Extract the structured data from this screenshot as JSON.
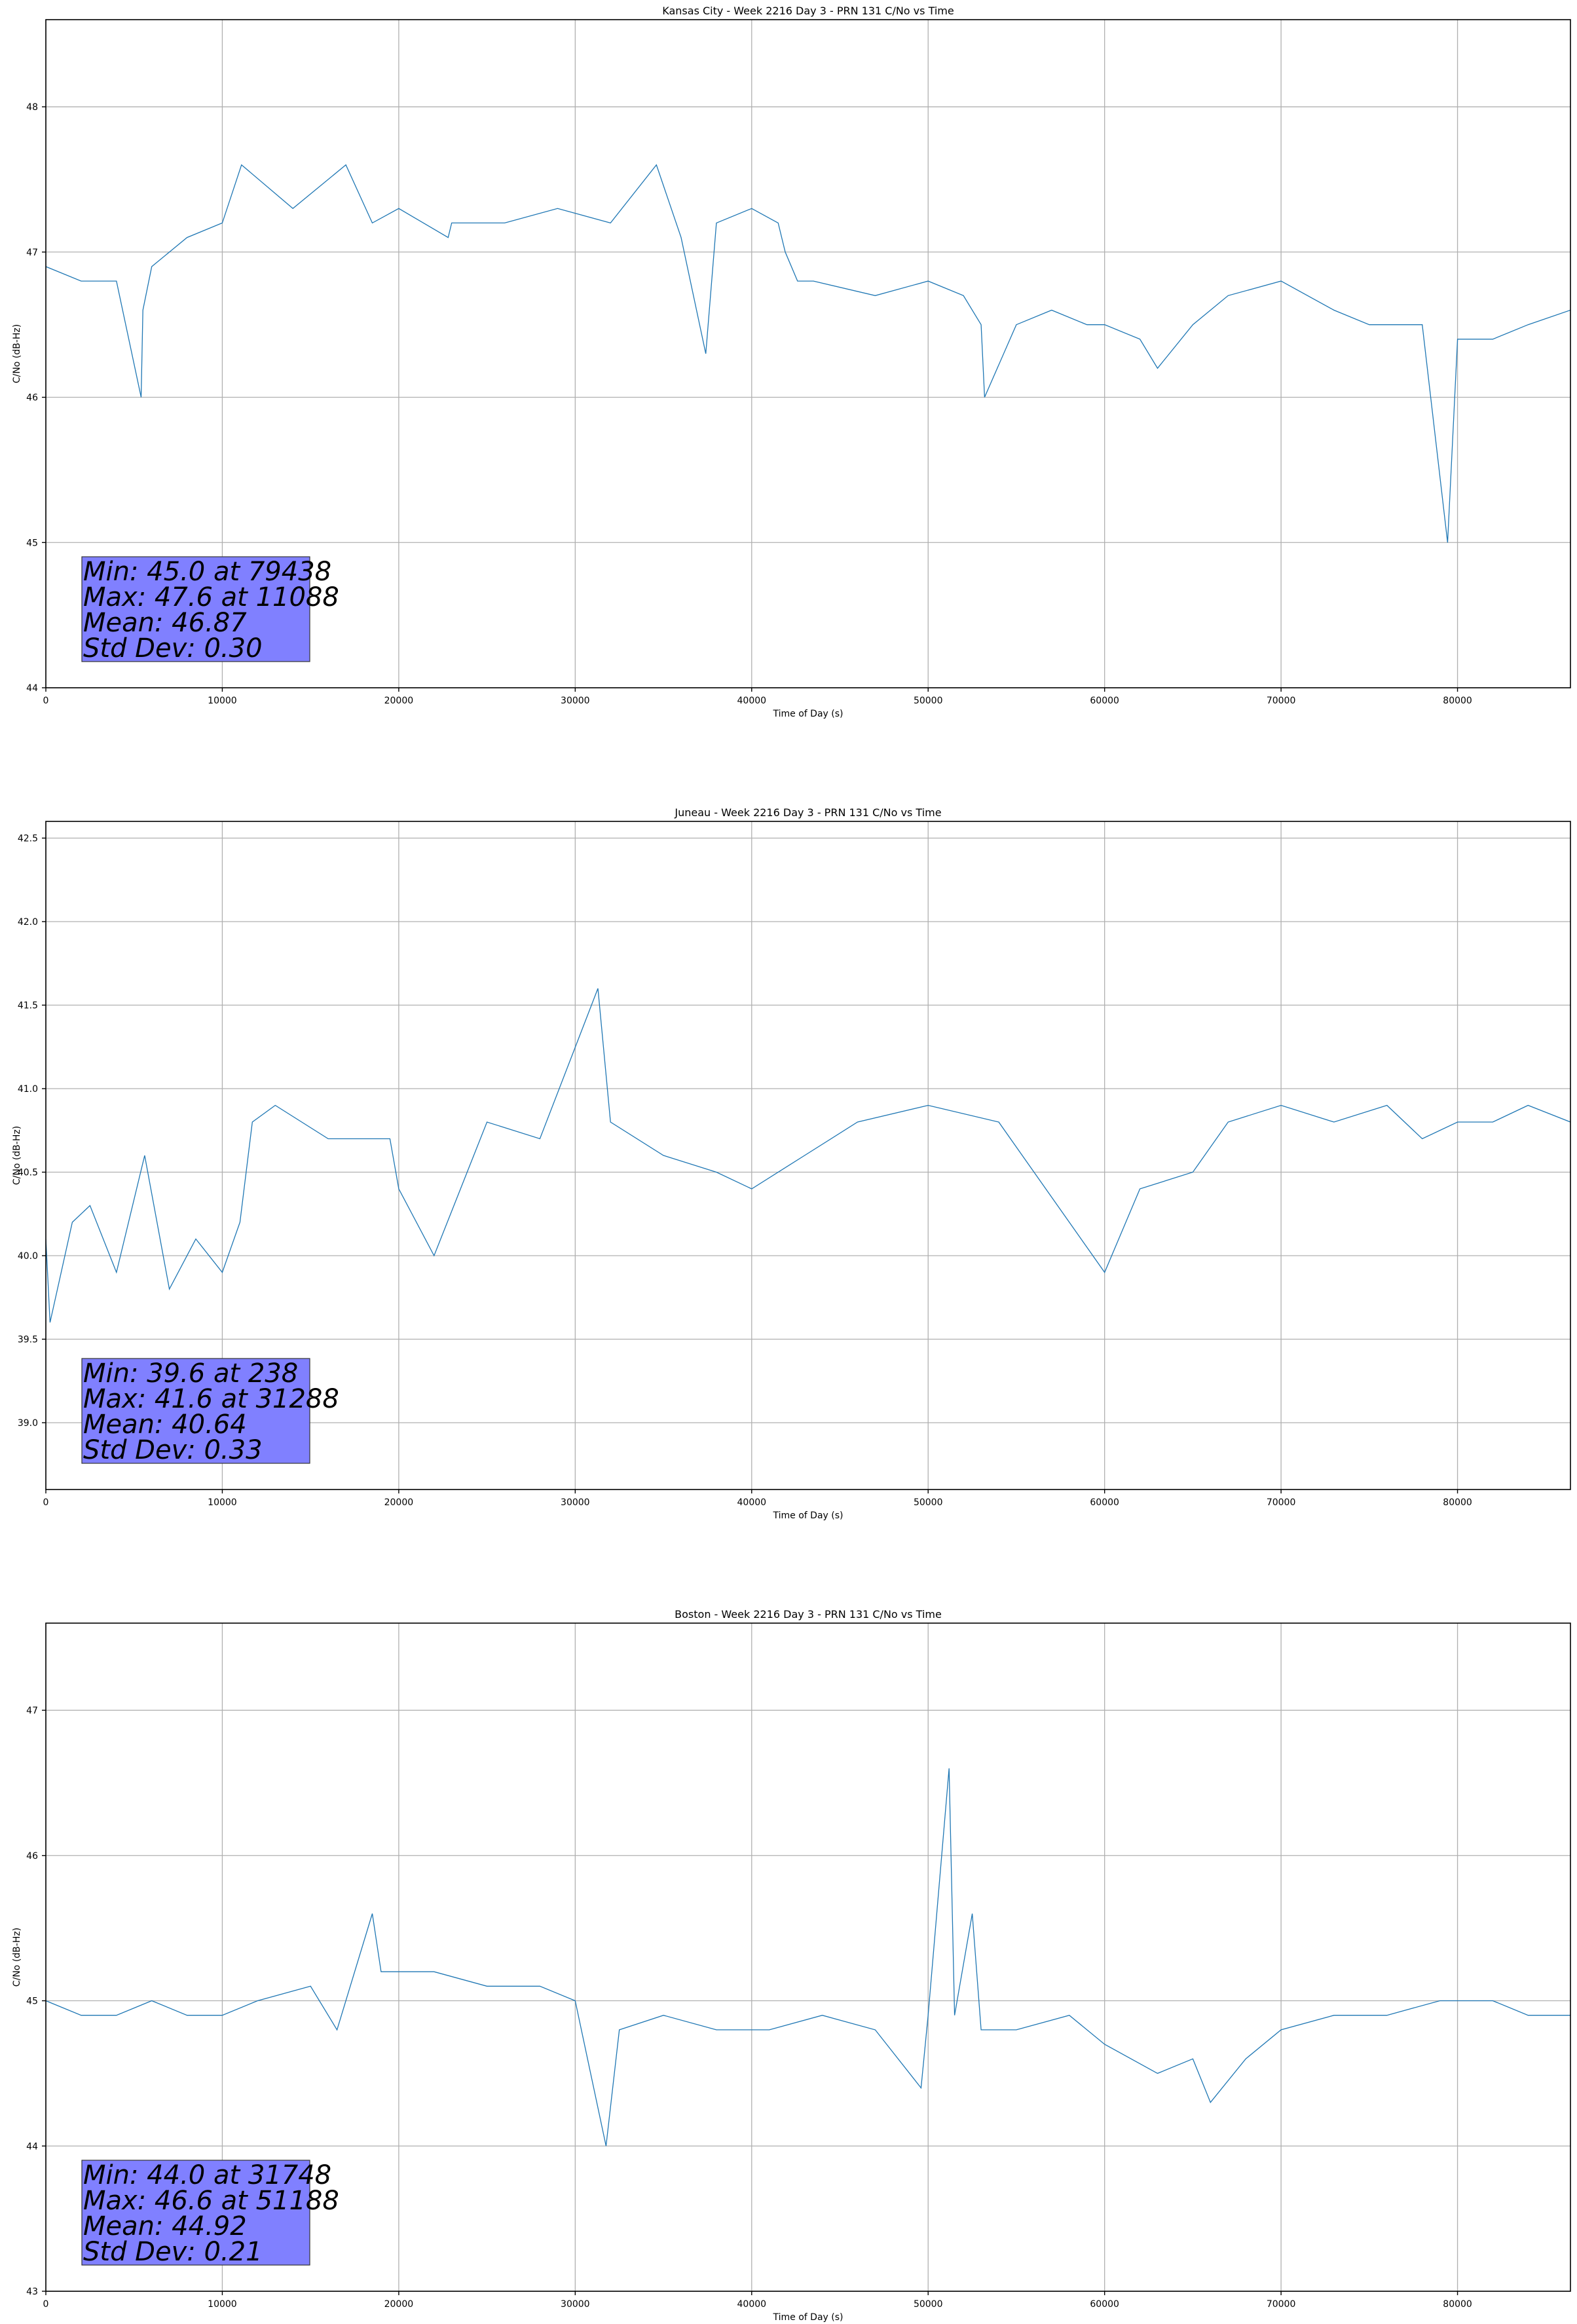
{
  "colors": {
    "series": "#1f77b4",
    "stats_box": "#8080ff",
    "grid": "#b0b0b0"
  },
  "chart_data": [
    {
      "type": "line",
      "title": "Kansas City - Week 2216 Day 3 - PRN 131 C/No vs Time",
      "xlabel": "Time of Day (s)",
      "ylabel": "C/No (dB-Hz)",
      "xlim": [
        0,
        86400
      ],
      "ylim": [
        44,
        48.6
      ],
      "xticks": [
        0,
        10000,
        20000,
        30000,
        40000,
        50000,
        60000,
        70000,
        80000
      ],
      "yticks": [
        44,
        45,
        46,
        47,
        48
      ],
      "grid": true,
      "series": [
        {
          "x": [
            0,
            2000,
            4000,
            5400,
            5500,
            6000,
            8000,
            10000,
            11088,
            14000,
            17000,
            18500,
            20000,
            22800,
            23000,
            26000,
            29000,
            32000,
            34600,
            36000,
            37400,
            38000,
            40000,
            41500,
            41900,
            42600,
            43500,
            47000,
            50000,
            52000,
            53000,
            53200,
            55000,
            57000,
            59000,
            60000,
            62000,
            63000,
            65000,
            67000,
            70000,
            73000,
            75000,
            76000,
            78000,
            79438,
            80000,
            82000,
            84000,
            86400
          ],
          "y": [
            46.9,
            46.8,
            46.8,
            46.0,
            46.6,
            46.9,
            47.1,
            47.2,
            47.6,
            47.3,
            47.6,
            47.2,
            47.3,
            47.1,
            47.2,
            47.2,
            47.3,
            47.2,
            47.6,
            47.1,
            46.3,
            47.2,
            47.3,
            47.2,
            47.0,
            46.8,
            46.8,
            46.7,
            46.8,
            46.7,
            46.5,
            46.0,
            46.5,
            46.6,
            46.5,
            46.5,
            46.4,
            46.2,
            46.5,
            46.7,
            46.8,
            46.6,
            46.5,
            46.5,
            46.5,
            45.0,
            46.4,
            46.4,
            46.5,
            46.6
          ]
        }
      ],
      "stats_box": [
        "Min: 45.0 at 79438",
        "Max: 47.6 at 11088",
        "Mean: 46.87",
        "Std Dev: 0.30"
      ]
    },
    {
      "type": "line",
      "title": "Juneau - Week 2216 Day 3 - PRN 131 C/No vs Time",
      "xlabel": "Time of Day (s)",
      "ylabel": "C/No (dB-Hz)",
      "xlim": [
        0,
        86400
      ],
      "ylim": [
        38.6,
        42.6
      ],
      "xticks": [
        0,
        10000,
        20000,
        30000,
        40000,
        50000,
        60000,
        70000,
        80000
      ],
      "yticks": [
        39.0,
        39.5,
        40.0,
        40.5,
        41.0,
        41.5,
        42.0,
        42.5
      ],
      "grid": true,
      "series": [
        {
          "x": [
            0,
            238,
            1500,
            2500,
            4000,
            5600,
            7000,
            8500,
            10000,
            11000,
            11700,
            13000,
            16000,
            19500,
            20000,
            22000,
            23500,
            25000,
            28000,
            31288,
            32000,
            35000,
            38000,
            40000,
            43000,
            46000,
            50000,
            54000,
            56000,
            60000,
            62000,
            65000,
            67000,
            70000,
            73000,
            76000,
            78000,
            80000,
            82000,
            84000,
            86400
          ],
          "y": [
            40.1,
            39.6,
            40.2,
            40.3,
            39.9,
            40.6,
            39.8,
            40.1,
            39.9,
            40.2,
            40.8,
            40.9,
            40.7,
            40.7,
            40.4,
            40.0,
            40.4,
            40.8,
            40.7,
            41.6,
            40.8,
            40.6,
            40.5,
            40.4,
            40.6,
            40.8,
            40.9,
            40.8,
            40.5,
            39.9,
            40.4,
            40.5,
            40.8,
            40.9,
            40.8,
            40.9,
            40.7,
            40.8,
            40.8,
            40.9,
            40.8
          ]
        }
      ],
      "stats_box": [
        "Min: 39.6 at 238",
        "Max: 41.6 at 31288",
        "Mean: 40.64",
        "Std Dev: 0.33"
      ]
    },
    {
      "type": "line",
      "title": "Boston - Week 2216 Day 3 - PRN 131 C/No vs Time",
      "xlabel": "Time of Day (s)",
      "ylabel": "C/No (dB-Hz)",
      "xlim": [
        0,
        86400
      ],
      "ylim": [
        43,
        47.6
      ],
      "xticks": [
        0,
        10000,
        20000,
        30000,
        40000,
        50000,
        60000,
        70000,
        80000
      ],
      "yticks": [
        43,
        44,
        45,
        46,
        47
      ],
      "grid": true,
      "series": [
        {
          "x": [
            0,
            2000,
            4000,
            6000,
            8000,
            10000,
            12000,
            15000,
            16500,
            18500,
            19000,
            22000,
            25000,
            28000,
            30000,
            31748,
            32500,
            35000,
            38000,
            41000,
            44000,
            47000,
            49600,
            50000,
            51188,
            51500,
            52500,
            53000,
            55000,
            58000,
            60000,
            63000,
            65000,
            66000,
            68000,
            70000,
            73000,
            76000,
            79000,
            82000,
            84000,
            86400
          ],
          "y": [
            45.0,
            44.9,
            44.9,
            45.0,
            44.9,
            44.9,
            45.0,
            45.1,
            44.8,
            45.6,
            45.2,
            45.2,
            45.1,
            45.1,
            45.0,
            44.0,
            44.8,
            44.9,
            44.8,
            44.8,
            44.9,
            44.8,
            44.4,
            44.9,
            46.6,
            44.9,
            45.6,
            44.8,
            44.8,
            44.9,
            44.7,
            44.5,
            44.6,
            44.3,
            44.6,
            44.8,
            44.9,
            44.9,
            45.0,
            45.0,
            44.9,
            44.9
          ]
        }
      ],
      "stats_box": [
        "Min: 44.0 at 31748",
        "Max: 46.6 at 51188",
        "Mean: 44.92",
        "Std Dev: 0.21"
      ]
    }
  ]
}
